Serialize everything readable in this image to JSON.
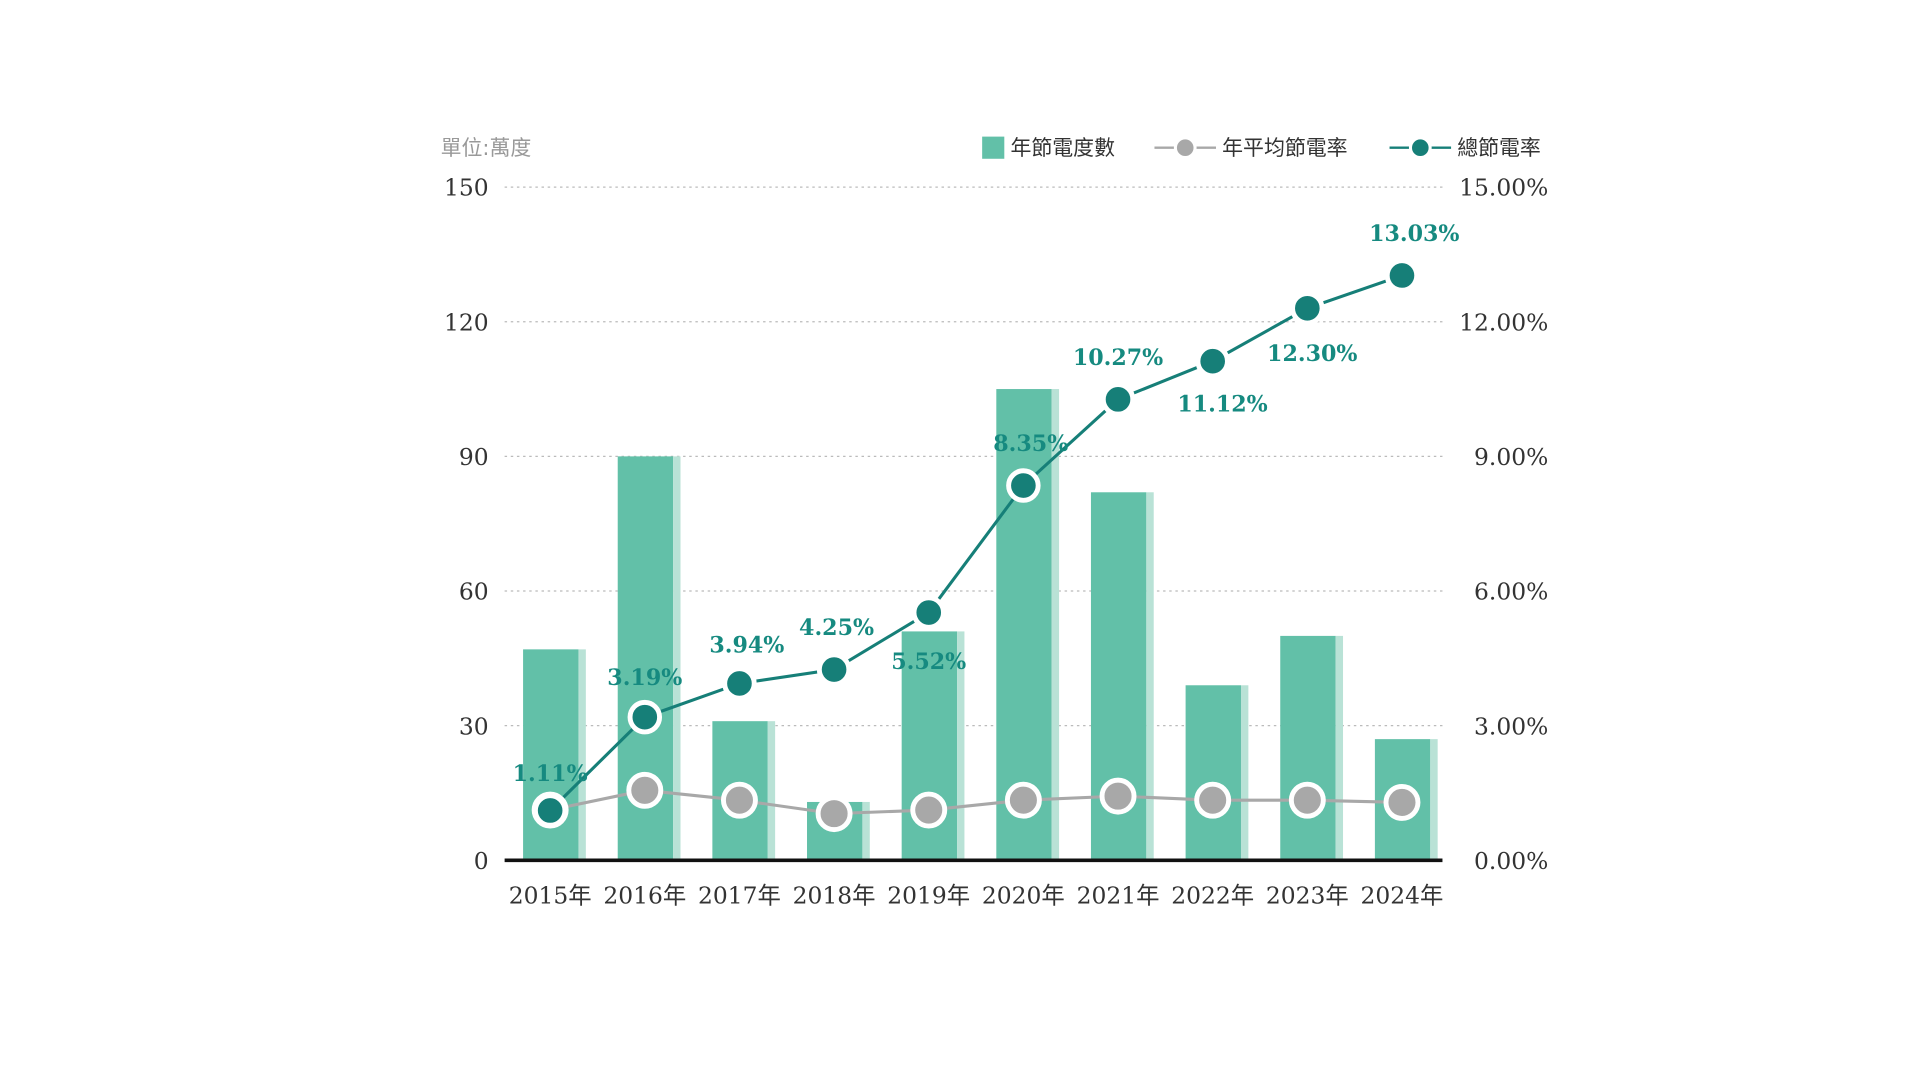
{
  "chart_data": {
    "type": "bar+line",
    "unit_label": "單位:萬度",
    "categories": [
      "2015年",
      "2016年",
      "2017年",
      "2018年",
      "2019年",
      "2020年",
      "2021年",
      "2022年",
      "2023年",
      "2024年"
    ],
    "series": [
      {
        "name": "年節電度數",
        "type": "bar",
        "axis": "left",
        "color": "#62c0a8",
        "values": [
          47,
          90,
          31,
          13,
          51,
          105,
          82,
          39,
          50,
          27
        ]
      },
      {
        "name": "年平均節電率",
        "type": "line",
        "axis": "right",
        "color": "#a8a8a8",
        "values": [
          1.12,
          1.56,
          1.34,
          1.04,
          1.12,
          1.34,
          1.43,
          1.34,
          1.34,
          1.29
        ]
      },
      {
        "name": "總節電率",
        "type": "line",
        "axis": "right",
        "color": "#167f78",
        "values": [
          1.11,
          3.19,
          3.94,
          4.25,
          5.52,
          8.35,
          10.27,
          11.12,
          12.3,
          13.03
        ],
        "labels": [
          "1.11%",
          "3.19%",
          "3.94%",
          "4.25%",
          "5.52%",
          "8.35%",
          "10.27%",
          "11.12%",
          "12.30%",
          "13.03%"
        ]
      }
    ],
    "left_axis": {
      "ylim": [
        0,
        150
      ],
      "ticks": [
        "0",
        "30",
        "60",
        "90",
        "120",
        "150"
      ]
    },
    "right_axis": {
      "ylim": [
        0,
        15
      ],
      "ticks": [
        "0.00%",
        "3.00%",
        "6.00%",
        "9.00%",
        "12.00%",
        "15.00%"
      ]
    },
    "grid": true,
    "legend_position": "top-right"
  }
}
